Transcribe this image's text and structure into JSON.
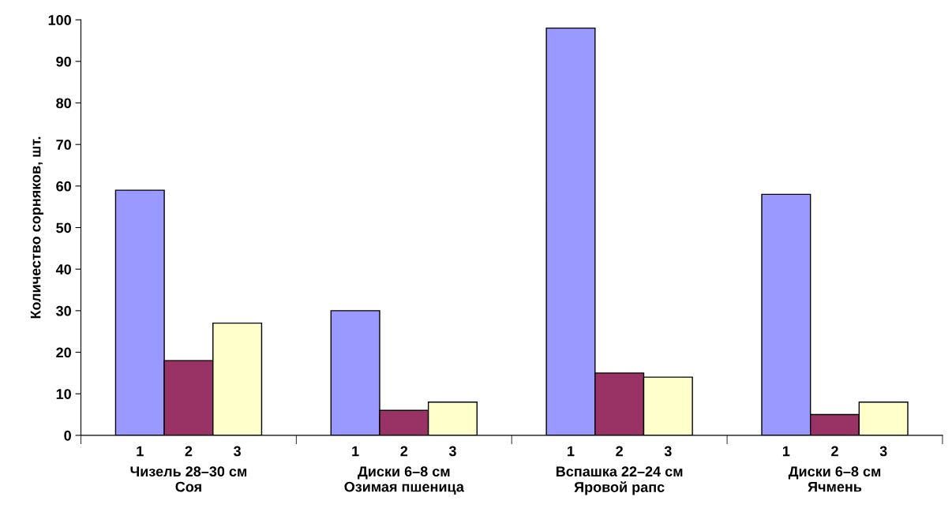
{
  "chart_data": {
    "type": "bar",
    "ylabel": "Количество сорняков, шт.",
    "categories": [
      "Чизель 28–30 см\nСоя",
      "Диски 6–8 см\nОзимая пшеница",
      "Вспашка 22–24 см\nЯровой рапс",
      "Диски 6–8 см\nЯчмень"
    ],
    "series": [
      {
        "name": "1",
        "color": "#9999ff",
        "values": [
          59,
          30,
          98,
          58
        ]
      },
      {
        "name": "2",
        "color": "#993366",
        "values": [
          18,
          6,
          15,
          5
        ]
      },
      {
        "name": "3",
        "color": "#ffffcc",
        "values": [
          27,
          8,
          14,
          8
        ]
      }
    ],
    "ylim": [
      0,
      100
    ],
    "yticks": [
      0,
      10,
      20,
      30,
      40,
      50,
      60,
      70,
      80,
      90,
      100
    ],
    "grid": false,
    "legend": false
  }
}
